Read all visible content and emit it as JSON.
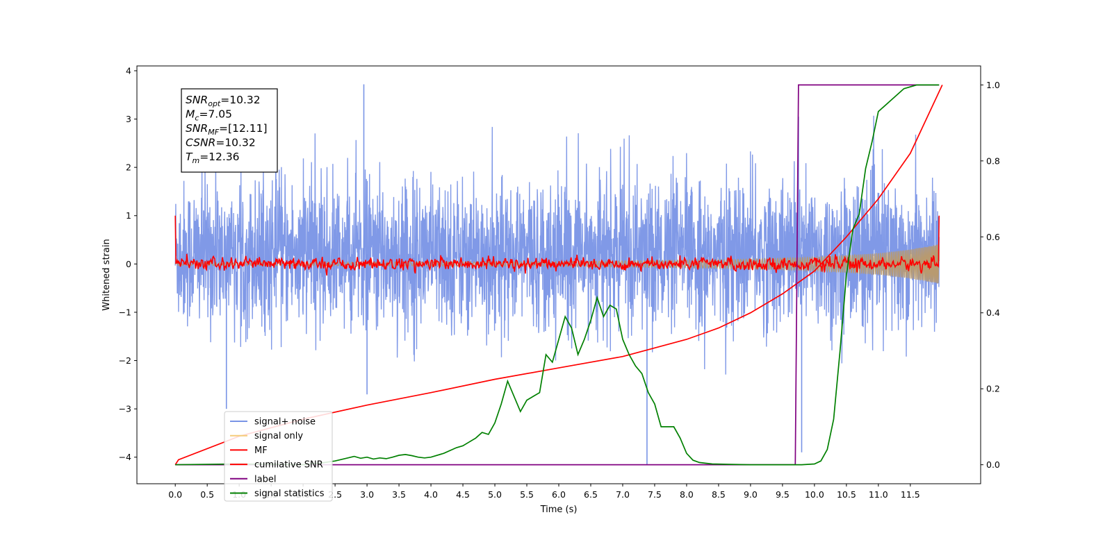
{
  "chart_data": {
    "type": "line",
    "xlabel": "Time (s)",
    "ylabel": "Whitened strain",
    "xlim": [
      -0.6,
      12.6
    ],
    "ylim": [
      -4.55,
      4.1
    ],
    "y2lim": [
      -0.05,
      1.05
    ],
    "x_ticks": [
      "0.0",
      "0.5",
      "1.0",
      "1.5",
      "2.0",
      "2.5",
      "3.0",
      "3.5",
      "4.0",
      "4.5",
      "5.0",
      "5.5",
      "6.0",
      "6.5",
      "7.0",
      "7.5",
      "8.0",
      "8.5",
      "9.0",
      "9.5",
      "10.0",
      "10.5",
      "11.0",
      "11.5"
    ],
    "y_ticks": [
      "4",
      "3",
      "2",
      "1",
      "0",
      "−1",
      "−2",
      "−3",
      "−4"
    ],
    "y2_ticks": [
      "1.0",
      "0.8",
      "0.6",
      "0.4",
      "0.2",
      "0.0"
    ],
    "grid": false,
    "legend_position": "lower-left",
    "info_box": {
      "lines": [
        {
          "sym": "SNR",
          "sub": "opt",
          "val": "=10.32"
        },
        {
          "sym": "M",
          "sub": "c",
          "val": "=7.05"
        },
        {
          "sym": "SNR",
          "sub": "MF",
          "val": "=[12.11]"
        },
        {
          "sym": "CSNR",
          "sub": "",
          "val": "=10.32"
        },
        {
          "sym": "T",
          "sub": "m",
          "val": "=12.36"
        }
      ]
    },
    "series": [
      {
        "name": "signal+ noise",
        "color": "#7994e6",
        "axis": "left",
        "description_values": "noise band approximately -1.6 to 2.0 with spikes up to 3.72 and down to -4.15"
      },
      {
        "name": "signal only",
        "color": "#f5cc7a",
        "axis": "left",
        "envelope": {
          "x": [
            0,
            6,
            8,
            9,
            10,
            11,
            11.5,
            12.0
          ],
          "amp": [
            0.03,
            0.05,
            0.08,
            0.1,
            0.14,
            0.22,
            0.3,
            0.42
          ]
        }
      },
      {
        "name": "MF",
        "color": "#ff0000",
        "axis": "left",
        "description_values": "fluctuates around 0 within ±0.15, edges at 1.0"
      },
      {
        "name": "cumilative SNR",
        "color": "#ff0000",
        "axis": "right",
        "x": [
          0.0,
          0.05,
          1.0,
          2.0,
          3.0,
          4.0,
          5.0,
          6.0,
          7.0,
          8.0,
          8.5,
          9.0,
          9.5,
          10.0,
          10.5,
          11.0,
          11.5,
          12.0
        ],
        "y": [
          0.0,
          0.013,
          0.075,
          0.12,
          0.157,
          0.19,
          0.225,
          0.255,
          0.285,
          0.33,
          0.36,
          0.4,
          0.45,
          0.51,
          0.6,
          0.7,
          0.82,
          1.0
        ]
      },
      {
        "name": "label",
        "color": "#800080",
        "axis": "right",
        "x": [
          0.0,
          9.7,
          9.75,
          11.95
        ],
        "y": [
          0.0,
          0.0,
          1.0,
          1.0
        ]
      },
      {
        "name": "signal statistics",
        "color": "#008000",
        "axis": "right",
        "x": [
          0.0,
          1.0,
          2.0,
          2.3,
          2.5,
          2.7,
          2.8,
          2.9,
          3.0,
          3.1,
          3.2,
          3.3,
          3.4,
          3.5,
          3.6,
          3.7,
          3.8,
          3.9,
          4.0,
          4.2,
          4.4,
          4.5,
          4.6,
          4.7,
          4.8,
          4.9,
          5.0,
          5.1,
          5.2,
          5.3,
          5.4,
          5.5,
          5.6,
          5.7,
          5.8,
          5.9,
          6.0,
          6.1,
          6.2,
          6.3,
          6.4,
          6.5,
          6.55,
          6.6,
          6.7,
          6.8,
          6.9,
          7.0,
          7.1,
          7.2,
          7.3,
          7.4,
          7.5,
          7.6,
          7.7,
          7.8,
          7.9,
          8.0,
          8.1,
          8.2,
          8.4,
          8.7,
          9.0,
          9.5,
          9.8,
          10.0,
          10.1,
          10.2,
          10.3,
          10.4,
          10.5,
          10.6,
          10.7,
          10.8,
          10.9,
          11.0,
          11.2,
          11.4,
          11.6,
          11.8,
          11.95
        ],
        "y": [
          0.0,
          0.002,
          0.0,
          0.005,
          0.01,
          0.018,
          0.022,
          0.017,
          0.02,
          0.015,
          0.018,
          0.016,
          0.02,
          0.025,
          0.027,
          0.024,
          0.02,
          0.018,
          0.02,
          0.03,
          0.045,
          0.05,
          0.06,
          0.07,
          0.085,
          0.08,
          0.11,
          0.16,
          0.22,
          0.18,
          0.14,
          0.17,
          0.18,
          0.19,
          0.29,
          0.27,
          0.33,
          0.39,
          0.36,
          0.29,
          0.33,
          0.38,
          0.41,
          0.44,
          0.39,
          0.42,
          0.41,
          0.33,
          0.29,
          0.26,
          0.24,
          0.19,
          0.16,
          0.1,
          0.1,
          0.1,
          0.07,
          0.03,
          0.012,
          0.006,
          0.002,
          0.001,
          0.0,
          0.0,
          0.0,
          0.002,
          0.01,
          0.04,
          0.12,
          0.3,
          0.5,
          0.62,
          0.66,
          0.78,
          0.85,
          0.93,
          0.96,
          0.99,
          1.0,
          1.0,
          1.0
        ]
      }
    ]
  }
}
